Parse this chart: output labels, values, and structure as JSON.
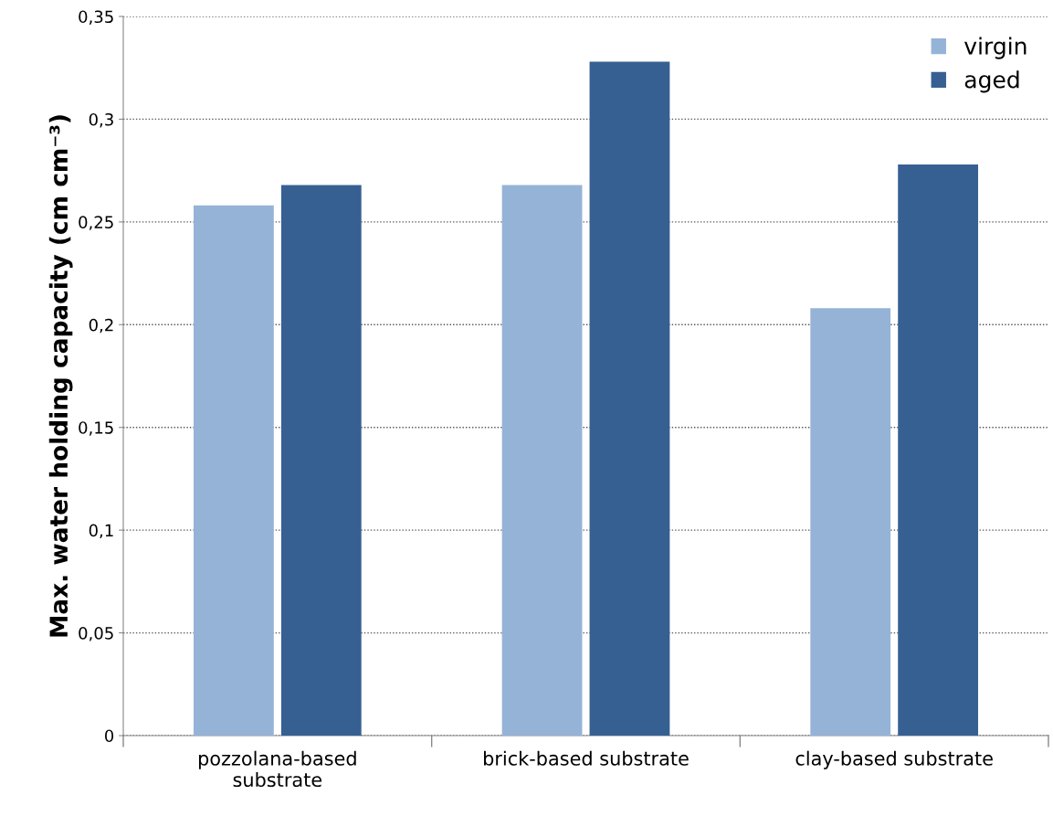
{
  "chart_data": {
    "type": "bar",
    "ylabel": "Max. water holding capacity (cm cm⁻³)",
    "categories": [
      "pozzolana-based\nsubstrate",
      "brick-based substrate",
      "clay-based substrate"
    ],
    "series": [
      {
        "name": "virgin",
        "color": "#95b3d7",
        "values": [
          0.258,
          0.268,
          0.208
        ]
      },
      {
        "name": "aged",
        "color": "#376092",
        "values": [
          0.268,
          0.328,
          0.278
        ]
      }
    ],
    "ylim": [
      0,
      0.35
    ],
    "yticks": [
      0,
      {
        "value": 0.05,
        "label": "0,05"
      },
      {
        "value": 0.1,
        "label": "0,1"
      },
      {
        "value": 0.15,
        "label": "0,15"
      },
      {
        "value": 0.2,
        "label": "0,2"
      },
      {
        "value": 0.25,
        "label": "0,25"
      },
      {
        "value": 0.3,
        "label": "0,3"
      },
      {
        "value": 0.35,
        "label": "0,35"
      }
    ],
    "grid": "y",
    "legend": "top right"
  }
}
